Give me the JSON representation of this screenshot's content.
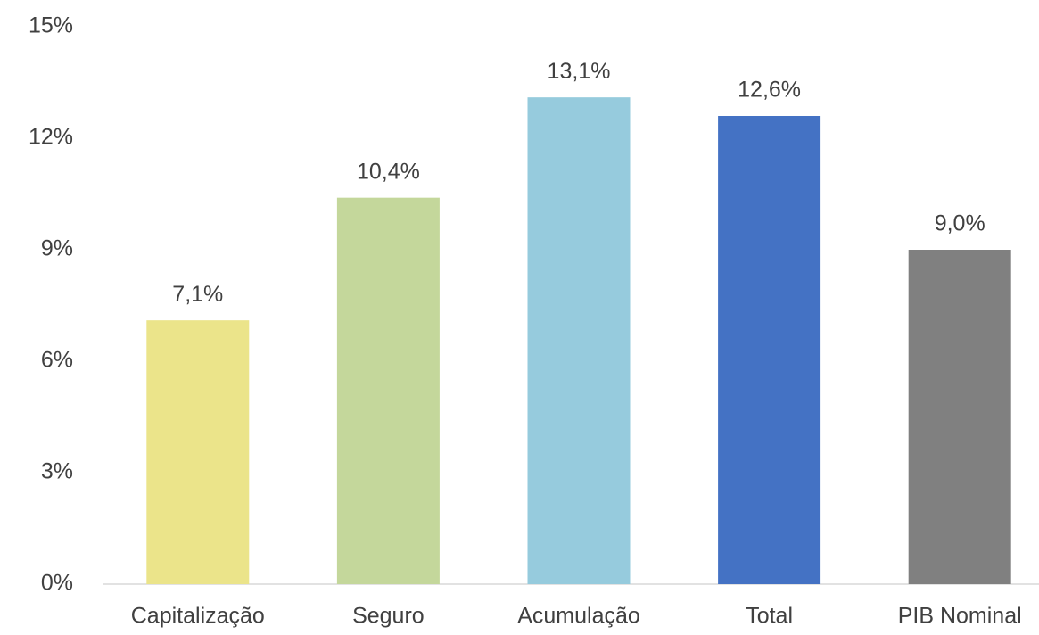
{
  "chart_data": {
    "type": "bar",
    "categories": [
      "Capitalização",
      "Seguro",
      "Acumulação",
      "Total",
      "PIB Nominal"
    ],
    "values": [
      7.1,
      10.4,
      13.1,
      12.6,
      9.0
    ],
    "value_labels": [
      "7,1%",
      "10,4%",
      "13,1%",
      "12,6%",
      "9,0%"
    ],
    "colors": [
      "#ebe48a",
      "#c4d79b",
      "#96cbdd",
      "#4472c4",
      "#808080"
    ],
    "ylim": [
      0,
      15
    ],
    "yticks": [
      {
        "value": 0,
        "label": "0%"
      },
      {
        "value": 3,
        "label": "3%"
      },
      {
        "value": 6,
        "label": "6%"
      },
      {
        "value": 9,
        "label": "9%"
      },
      {
        "value": 12,
        "label": "12%"
      },
      {
        "value": 15,
        "label": "15%"
      }
    ],
    "grid": false
  }
}
